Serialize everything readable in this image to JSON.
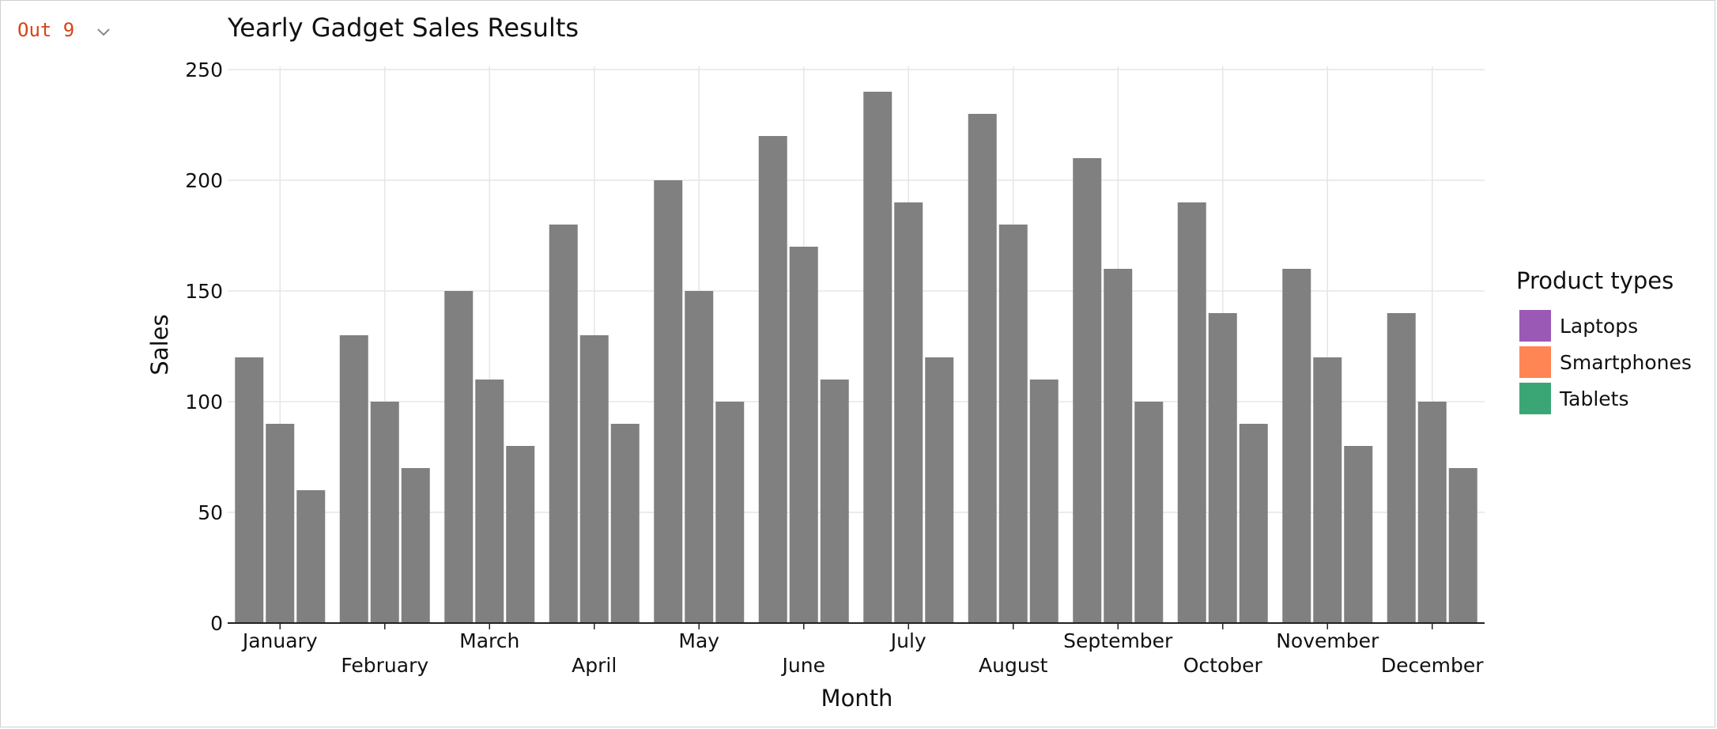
{
  "output": {
    "label": "Out 9"
  },
  "icons": {
    "collapse": "chevron-down-icon"
  },
  "chart_data": {
    "type": "bar",
    "title": "Yearly Gadget Sales Results",
    "xlabel": "Month",
    "ylabel": "Sales",
    "ylim": [
      0,
      250
    ],
    "yticks": [
      0,
      50,
      100,
      150,
      200,
      250
    ],
    "grid": true,
    "legend": {
      "title": "Product types",
      "position": "right"
    },
    "categories": [
      "January",
      "February",
      "March",
      "April",
      "May",
      "June",
      "July",
      "August",
      "September",
      "October",
      "November",
      "December"
    ],
    "series": [
      {
        "name": "Laptops",
        "color": "#9b59b6",
        "values": [
          120,
          130,
          150,
          180,
          200,
          220,
          240,
          230,
          210,
          190,
          160,
          140
        ]
      },
      {
        "name": "Smartphones",
        "color": "#ff8555",
        "values": [
          90,
          100,
          110,
          130,
          150,
          170,
          190,
          180,
          160,
          140,
          120,
          100
        ]
      },
      {
        "name": "Tablets",
        "color": "#3aa676",
        "values": [
          60,
          70,
          80,
          90,
          100,
          110,
          120,
          110,
          100,
          90,
          80,
          70
        ]
      }
    ],
    "bar_color": "#808080"
  }
}
